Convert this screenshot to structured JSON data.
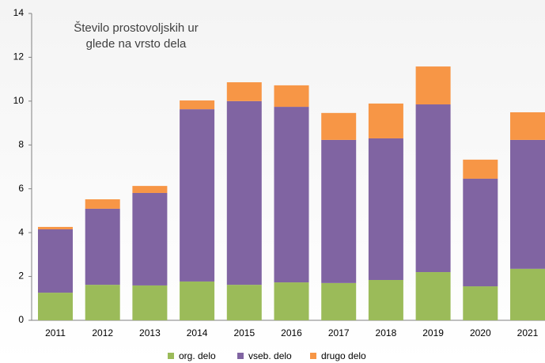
{
  "chart_data": {
    "type": "stacked-bar",
    "title": [
      "Število prostovoljskih ur",
      "glede na vrsto dela"
    ],
    "categories": [
      "2011",
      "2012",
      "2013",
      "2014",
      "2015",
      "2016",
      "2017",
      "2018",
      "2019",
      "2020",
      "2021"
    ],
    "series": [
      {
        "name": "org. delo",
        "color": "#9bbb59",
        "values": [
          1.26,
          1.62,
          1.59,
          1.77,
          1.62,
          1.73,
          1.7,
          1.84,
          2.2,
          1.55,
          2.35
        ]
      },
      {
        "name": "vseb. delo",
        "color": "#8064a2",
        "values": [
          2.89,
          3.47,
          4.22,
          7.86,
          8.38,
          8.01,
          6.53,
          6.46,
          7.65,
          4.91,
          5.88
        ]
      },
      {
        "name": "drugo delo",
        "color": "#f79646",
        "values": [
          0.11,
          0.43,
          0.32,
          0.4,
          0.86,
          0.98,
          1.23,
          1.59,
          1.73,
          0.87,
          1.26
        ]
      }
    ],
    "ylim": [
      0,
      14
    ],
    "yticks": [
      0,
      2,
      4,
      6,
      8,
      10,
      12,
      14
    ],
    "grid": false,
    "legend": "bottom"
  }
}
